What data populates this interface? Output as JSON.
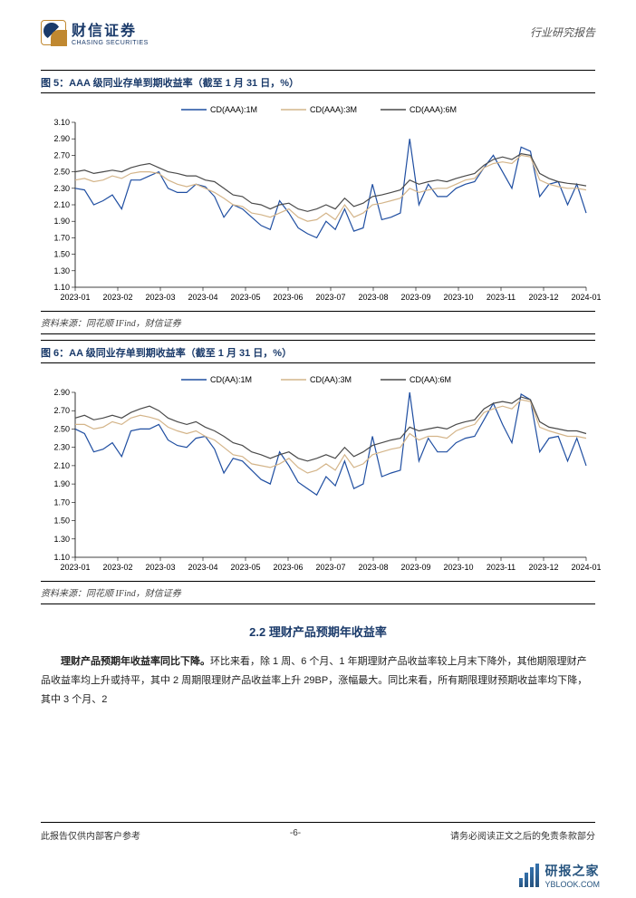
{
  "header": {
    "logo_cn": "财信证券",
    "logo_en": "CHASING SECURITIES",
    "right_text": "行业研究报告"
  },
  "chart5": {
    "type": "line",
    "title": "图 5：AAA 级同业存单到期收益率（截至 1 月 31 日，%）",
    "source": "资料来源：同花顺 IFind，财信证券",
    "legend": [
      "CD(AAA):1M",
      "CD(AAA):3M",
      "CD(AAA):6M"
    ],
    "series_colors": [
      "#1f4ea1",
      "#d4b58a",
      "#4a4a4a"
    ],
    "x_categories": [
      "2023-01",
      "2023-02",
      "2023-03",
      "2023-04",
      "2023-05",
      "2023-06",
      "2023-07",
      "2023-08",
      "2023-09",
      "2023-10",
      "2023-11",
      "2023-12",
      "2024-01"
    ],
    "ylim": [
      1.1,
      3.1
    ],
    "ytick_step": 0.2,
    "tick_fontsize": 9,
    "legend_fontsize": 9,
    "line_width": 1.2,
    "background_color": "#ffffff",
    "series": {
      "CD(AAA):1M": [
        2.3,
        2.28,
        2.1,
        2.15,
        2.22,
        2.05,
        2.4,
        2.4,
        2.45,
        2.5,
        2.3,
        2.25,
        2.25,
        2.35,
        2.32,
        2.2,
        1.95,
        2.1,
        2.05,
        1.95,
        1.85,
        1.8,
        2.15,
        2.0,
        1.82,
        1.75,
        1.7,
        1.9,
        1.8,
        2.05,
        1.78,
        1.82,
        2.35,
        1.92,
        1.95,
        2.0,
        2.9,
        2.1,
        2.35,
        2.2,
        2.2,
        2.3,
        2.35,
        2.38,
        2.55,
        2.7,
        2.5,
        2.3,
        2.8,
        2.75,
        2.2,
        2.35,
        2.38,
        2.1,
        2.35,
        2.0
      ],
      "CD(AAA):3M": [
        2.4,
        2.42,
        2.38,
        2.4,
        2.45,
        2.42,
        2.48,
        2.5,
        2.5,
        2.48,
        2.4,
        2.35,
        2.32,
        2.35,
        2.3,
        2.25,
        2.18,
        2.1,
        2.08,
        2.0,
        1.98,
        1.95,
        2.0,
        2.05,
        1.95,
        1.9,
        1.92,
        2.0,
        1.92,
        2.1,
        1.95,
        2.0,
        2.1,
        2.12,
        2.15,
        2.18,
        2.3,
        2.25,
        2.28,
        2.3,
        2.3,
        2.35,
        2.4,
        2.42,
        2.55,
        2.6,
        2.62,
        2.6,
        2.7,
        2.68,
        2.4,
        2.35,
        2.32,
        2.3,
        2.3,
        2.28
      ],
      "CD(AAA):6M": [
        2.5,
        2.52,
        2.48,
        2.5,
        2.52,
        2.5,
        2.55,
        2.58,
        2.6,
        2.55,
        2.5,
        2.48,
        2.45,
        2.45,
        2.4,
        2.38,
        2.3,
        2.22,
        2.2,
        2.12,
        2.1,
        2.05,
        2.1,
        2.12,
        2.05,
        2.02,
        2.05,
        2.1,
        2.05,
        2.18,
        2.08,
        2.12,
        2.2,
        2.22,
        2.25,
        2.28,
        2.4,
        2.35,
        2.38,
        2.4,
        2.38,
        2.42,
        2.45,
        2.48,
        2.58,
        2.65,
        2.68,
        2.65,
        2.72,
        2.7,
        2.48,
        2.42,
        2.38,
        2.36,
        2.35,
        2.33
      ]
    }
  },
  "chart6": {
    "type": "line",
    "title": "图 6：AA 级同业存单到期收益率（截至 1 月 31 日，%）",
    "source": "资料来源：同花顺 IFind，财信证券",
    "legend": [
      "CD(AA):1M",
      "CD(AA):3M",
      "CD(AA):6M"
    ],
    "series_colors": [
      "#1f4ea1",
      "#d4b58a",
      "#4a4a4a"
    ],
    "x_categories": [
      "2023-01",
      "2023-02",
      "2023-03",
      "2023-04",
      "2023-05",
      "2023-06",
      "2023-07",
      "2023-08",
      "2023-09",
      "2023-10",
      "2023-11",
      "2023-12",
      "2024-01"
    ],
    "ylim": [
      1.1,
      2.9
    ],
    "ytick_step": 0.2,
    "tick_fontsize": 9,
    "legend_fontsize": 9,
    "line_width": 1.2,
    "background_color": "#ffffff",
    "series": {
      "CD(AA):1M": [
        2.5,
        2.45,
        2.25,
        2.28,
        2.35,
        2.2,
        2.48,
        2.5,
        2.5,
        2.55,
        2.38,
        2.32,
        2.3,
        2.4,
        2.42,
        2.28,
        2.02,
        2.18,
        2.15,
        2.05,
        1.95,
        1.9,
        2.25,
        2.1,
        1.92,
        1.85,
        1.78,
        1.98,
        1.88,
        2.15,
        1.85,
        1.9,
        2.42,
        1.98,
        2.02,
        2.05,
        2.9,
        2.15,
        2.4,
        2.25,
        2.25,
        2.35,
        2.4,
        2.42,
        2.6,
        2.78,
        2.55,
        2.35,
        2.88,
        2.82,
        2.25,
        2.4,
        2.42,
        2.15,
        2.4,
        2.1
      ],
      "CD(AA):3M": [
        2.55,
        2.55,
        2.5,
        2.52,
        2.58,
        2.55,
        2.62,
        2.65,
        2.63,
        2.6,
        2.52,
        2.48,
        2.45,
        2.48,
        2.42,
        2.38,
        2.3,
        2.22,
        2.2,
        2.12,
        2.1,
        2.08,
        2.12,
        2.18,
        2.08,
        2.02,
        2.05,
        2.12,
        2.05,
        2.22,
        2.08,
        2.12,
        2.22,
        2.25,
        2.28,
        2.3,
        2.45,
        2.38,
        2.42,
        2.42,
        2.4,
        2.48,
        2.52,
        2.55,
        2.68,
        2.72,
        2.75,
        2.72,
        2.82,
        2.8,
        2.52,
        2.48,
        2.45,
        2.42,
        2.42,
        2.4
      ],
      "CD(AA):6M": [
        2.62,
        2.65,
        2.6,
        2.62,
        2.65,
        2.62,
        2.68,
        2.72,
        2.75,
        2.7,
        2.62,
        2.58,
        2.55,
        2.58,
        2.52,
        2.48,
        2.42,
        2.35,
        2.32,
        2.25,
        2.22,
        2.18,
        2.22,
        2.25,
        2.18,
        2.15,
        2.18,
        2.22,
        2.18,
        2.3,
        2.2,
        2.25,
        2.32,
        2.35,
        2.38,
        2.4,
        2.52,
        2.48,
        2.5,
        2.52,
        2.5,
        2.55,
        2.58,
        2.6,
        2.72,
        2.78,
        2.8,
        2.78,
        2.85,
        2.82,
        2.58,
        2.52,
        2.5,
        2.48,
        2.48,
        2.45
      ]
    }
  },
  "section": {
    "heading": "2.2 理财产品预期年收益率",
    "para_html": "理财产品预期年收益率同比下降。|环比来看，除 1 周、6 个月、1 年期理财产品收益率较上月末下降外，其他期限理财产品收益率均上升或持平，其中 2 周期限理财产品收益率上升 29BP，涨幅最大。同比来看，所有期限理财预期收益率均下降，其中 3 个月、2"
  },
  "footer": {
    "left": "此报告仅供内部客户参考",
    "center": "-6-",
    "right": "请务必阅读正文之后的免责条款部分"
  },
  "watermark": {
    "l1": "研报之家",
    "l2": "YBLOOK.COM"
  }
}
